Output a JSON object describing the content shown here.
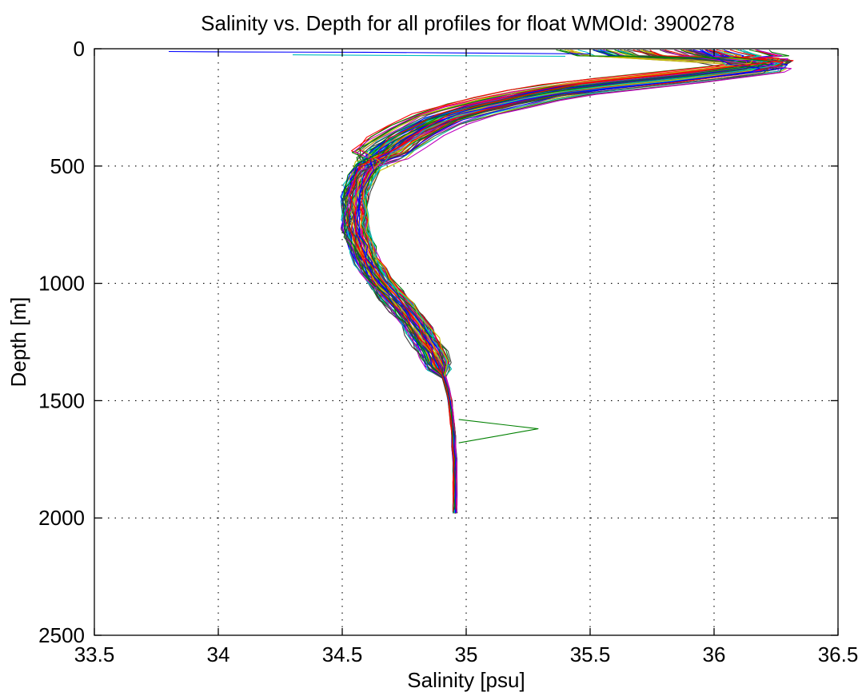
{
  "chart_data": {
    "type": "line",
    "title": "Salinity vs. Depth for all profiles for float WMOId: 3900278",
    "xlabel": "Salinity [psu]",
    "ylabel": "Depth [m]",
    "xlim": [
      33.5,
      36.5
    ],
    "ylim": [
      0,
      2500
    ],
    "y_reversed": true,
    "grid": true,
    "x_ticks": [
      "33.5",
      "34",
      "34.5",
      "35",
      "35.5",
      "36",
      "36.5"
    ],
    "y_ticks": [
      "0",
      "500",
      "1000",
      "1500",
      "2000",
      "2500"
    ],
    "colors": [
      "#0000ff",
      "#008000",
      "#ff0000",
      "#00bfbf",
      "#bf00bf",
      "#bfbf00",
      "#404040"
    ],
    "profile_count": 80,
    "mean_profile": {
      "depth": [
        5,
        15,
        30,
        50,
        65,
        80,
        100,
        125,
        150,
        175,
        200,
        230,
        260,
        300,
        350,
        400,
        450,
        500,
        550,
        600,
        650,
        700,
        750,
        800,
        850,
        900,
        950,
        1000,
        1050,
        1100,
        1150,
        1200,
        1250,
        1300,
        1350,
        1400,
        1450,
        1500,
        1550,
        1600,
        1650,
        1700,
        1750,
        1800,
        1850,
        1900,
        1950,
        1980
      ],
      "salinity": [
        35.6,
        35.7,
        35.85,
        36.1,
        36.22,
        36.2,
        36.05,
        35.85,
        35.62,
        35.42,
        35.28,
        35.15,
        35.03,
        34.9,
        34.8,
        34.72,
        34.66,
        34.61,
        34.58,
        34.56,
        34.55,
        34.55,
        34.555,
        34.565,
        34.58,
        34.6,
        34.63,
        34.66,
        34.7,
        34.74,
        34.78,
        34.81,
        34.84,
        34.87,
        34.89,
        34.91,
        34.925,
        34.935,
        34.94,
        34.945,
        34.95,
        34.95,
        34.955,
        34.955,
        34.955,
        34.955,
        34.955,
        34.955
      ]
    },
    "annotations": {
      "low_salinity_surface_outlier": {
        "salinity": [
          33.8,
          34.1,
          34.6,
          35.0,
          35.5
        ],
        "depth": [
          12,
          14,
          15,
          18,
          22
        ]
      },
      "spike_outlier": {
        "salinity": [
          34.97,
          35.29,
          34.97
        ],
        "depth": [
          1580,
          1620,
          1680
        ]
      }
    }
  }
}
